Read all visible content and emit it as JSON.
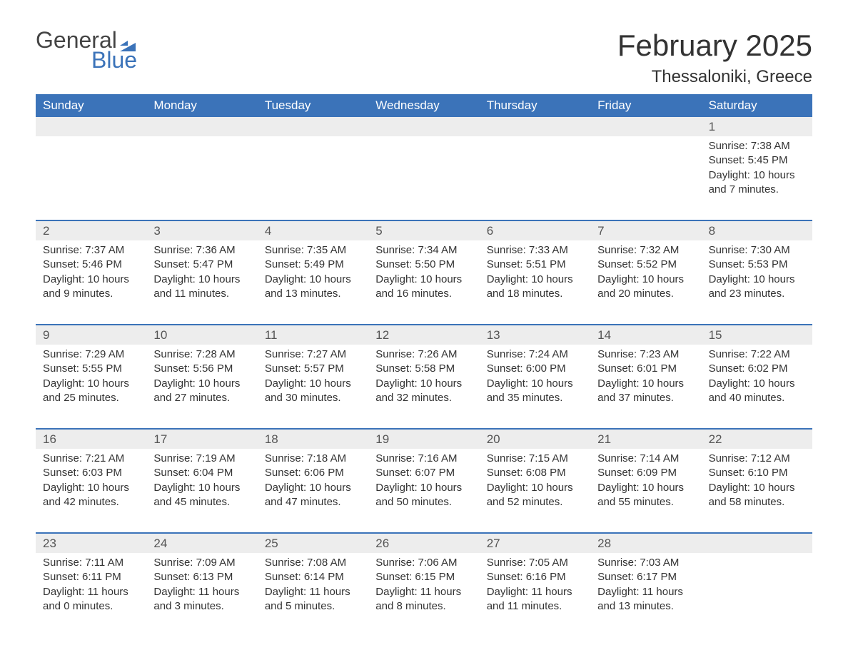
{
  "logo": {
    "word1": "General",
    "word2": "Blue"
  },
  "title": "February 2025",
  "location": "Thessaloniki, Greece",
  "theme": {
    "header_bg": "#3b73b9",
    "header_fg": "#ffffff",
    "daynum_bg": "#ededed",
    "border_color": "#3b73b9",
    "text_color": "#333333",
    "title_fontsize": 42,
    "location_fontsize": 24,
    "dow_fontsize": 17,
    "cell_fontsize": 15
  },
  "days_of_week": [
    "Sunday",
    "Monday",
    "Tuesday",
    "Wednesday",
    "Thursday",
    "Friday",
    "Saturday"
  ],
  "weeks": [
    [
      null,
      null,
      null,
      null,
      null,
      null,
      {
        "n": "1",
        "sr": "Sunrise: 7:38 AM",
        "ss": "Sunset: 5:45 PM",
        "dl": "Daylight: 10 hours and 7 minutes."
      }
    ],
    [
      {
        "n": "2",
        "sr": "Sunrise: 7:37 AM",
        "ss": "Sunset: 5:46 PM",
        "dl": "Daylight: 10 hours and 9 minutes."
      },
      {
        "n": "3",
        "sr": "Sunrise: 7:36 AM",
        "ss": "Sunset: 5:47 PM",
        "dl": "Daylight: 10 hours and 11 minutes."
      },
      {
        "n": "4",
        "sr": "Sunrise: 7:35 AM",
        "ss": "Sunset: 5:49 PM",
        "dl": "Daylight: 10 hours and 13 minutes."
      },
      {
        "n": "5",
        "sr": "Sunrise: 7:34 AM",
        "ss": "Sunset: 5:50 PM",
        "dl": "Daylight: 10 hours and 16 minutes."
      },
      {
        "n": "6",
        "sr": "Sunrise: 7:33 AM",
        "ss": "Sunset: 5:51 PM",
        "dl": "Daylight: 10 hours and 18 minutes."
      },
      {
        "n": "7",
        "sr": "Sunrise: 7:32 AM",
        "ss": "Sunset: 5:52 PM",
        "dl": "Daylight: 10 hours and 20 minutes."
      },
      {
        "n": "8",
        "sr": "Sunrise: 7:30 AM",
        "ss": "Sunset: 5:53 PM",
        "dl": "Daylight: 10 hours and 23 minutes."
      }
    ],
    [
      {
        "n": "9",
        "sr": "Sunrise: 7:29 AM",
        "ss": "Sunset: 5:55 PM",
        "dl": "Daylight: 10 hours and 25 minutes."
      },
      {
        "n": "10",
        "sr": "Sunrise: 7:28 AM",
        "ss": "Sunset: 5:56 PM",
        "dl": "Daylight: 10 hours and 27 minutes."
      },
      {
        "n": "11",
        "sr": "Sunrise: 7:27 AM",
        "ss": "Sunset: 5:57 PM",
        "dl": "Daylight: 10 hours and 30 minutes."
      },
      {
        "n": "12",
        "sr": "Sunrise: 7:26 AM",
        "ss": "Sunset: 5:58 PM",
        "dl": "Daylight: 10 hours and 32 minutes."
      },
      {
        "n": "13",
        "sr": "Sunrise: 7:24 AM",
        "ss": "Sunset: 6:00 PM",
        "dl": "Daylight: 10 hours and 35 minutes."
      },
      {
        "n": "14",
        "sr": "Sunrise: 7:23 AM",
        "ss": "Sunset: 6:01 PM",
        "dl": "Daylight: 10 hours and 37 minutes."
      },
      {
        "n": "15",
        "sr": "Sunrise: 7:22 AM",
        "ss": "Sunset: 6:02 PM",
        "dl": "Daylight: 10 hours and 40 minutes."
      }
    ],
    [
      {
        "n": "16",
        "sr": "Sunrise: 7:21 AM",
        "ss": "Sunset: 6:03 PM",
        "dl": "Daylight: 10 hours and 42 minutes."
      },
      {
        "n": "17",
        "sr": "Sunrise: 7:19 AM",
        "ss": "Sunset: 6:04 PM",
        "dl": "Daylight: 10 hours and 45 minutes."
      },
      {
        "n": "18",
        "sr": "Sunrise: 7:18 AM",
        "ss": "Sunset: 6:06 PM",
        "dl": "Daylight: 10 hours and 47 minutes."
      },
      {
        "n": "19",
        "sr": "Sunrise: 7:16 AM",
        "ss": "Sunset: 6:07 PM",
        "dl": "Daylight: 10 hours and 50 minutes."
      },
      {
        "n": "20",
        "sr": "Sunrise: 7:15 AM",
        "ss": "Sunset: 6:08 PM",
        "dl": "Daylight: 10 hours and 52 minutes."
      },
      {
        "n": "21",
        "sr": "Sunrise: 7:14 AM",
        "ss": "Sunset: 6:09 PM",
        "dl": "Daylight: 10 hours and 55 minutes."
      },
      {
        "n": "22",
        "sr": "Sunrise: 7:12 AM",
        "ss": "Sunset: 6:10 PM",
        "dl": "Daylight: 10 hours and 58 minutes."
      }
    ],
    [
      {
        "n": "23",
        "sr": "Sunrise: 7:11 AM",
        "ss": "Sunset: 6:11 PM",
        "dl": "Daylight: 11 hours and 0 minutes."
      },
      {
        "n": "24",
        "sr": "Sunrise: 7:09 AM",
        "ss": "Sunset: 6:13 PM",
        "dl": "Daylight: 11 hours and 3 minutes."
      },
      {
        "n": "25",
        "sr": "Sunrise: 7:08 AM",
        "ss": "Sunset: 6:14 PM",
        "dl": "Daylight: 11 hours and 5 minutes."
      },
      {
        "n": "26",
        "sr": "Sunrise: 7:06 AM",
        "ss": "Sunset: 6:15 PM",
        "dl": "Daylight: 11 hours and 8 minutes."
      },
      {
        "n": "27",
        "sr": "Sunrise: 7:05 AM",
        "ss": "Sunset: 6:16 PM",
        "dl": "Daylight: 11 hours and 11 minutes."
      },
      {
        "n": "28",
        "sr": "Sunrise: 7:03 AM",
        "ss": "Sunset: 6:17 PM",
        "dl": "Daylight: 11 hours and 13 minutes."
      },
      null
    ]
  ]
}
